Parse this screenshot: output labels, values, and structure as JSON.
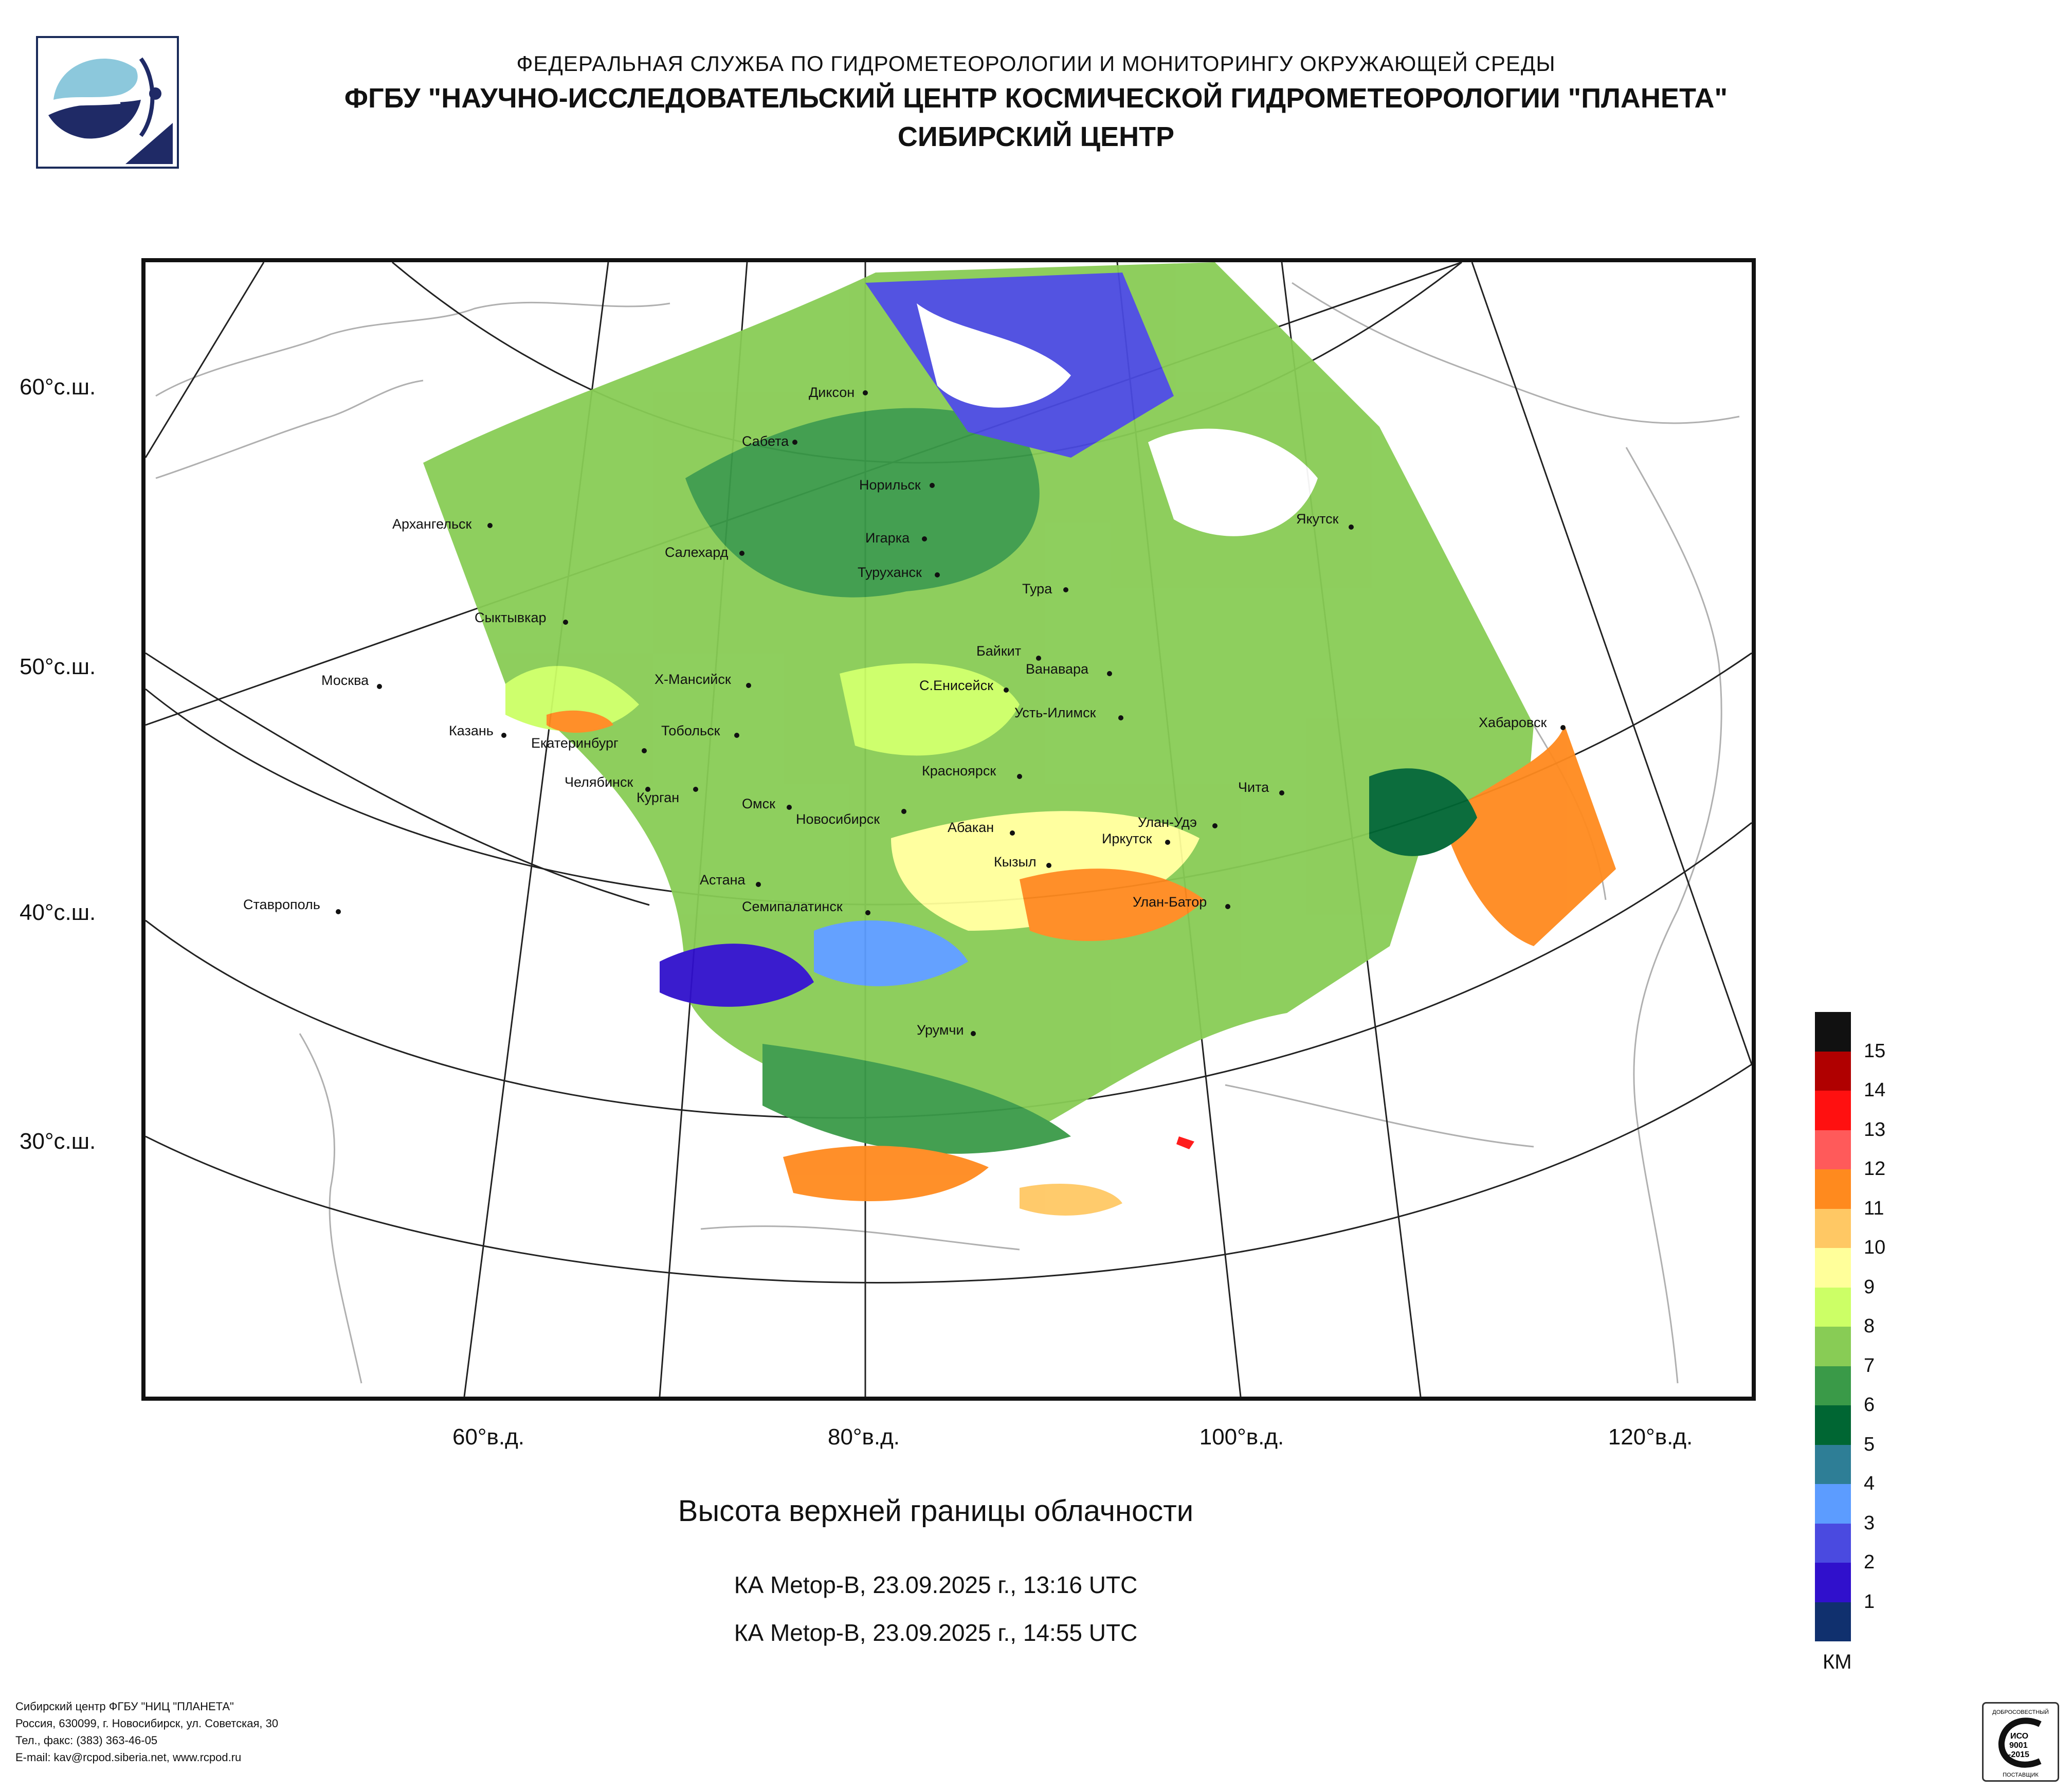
{
  "header": {
    "line1": "ФЕДЕРАЛЬНАЯ СЛУЖБА ПО ГИДРОМЕТЕОРОЛОГИИ И МОНИТОРИНГУ ОКРУЖАЮЩЕЙ СРЕДЫ",
    "line2": "ФГБУ \"НАУЧНО-ИССЛЕДОВАТЕЛЬСКИЙ ЦЕНТР КОСМИЧЕСКОЙ ГИДРОМЕТЕОРОЛОГИИ \"ПЛАНЕТА\"",
    "line3": "СИБИРСКИЙ ЦЕНТР"
  },
  "map": {
    "lat_labels": [
      "60°с.ш.",
      "50°с.ш.",
      "40°с.ш.",
      "30°с.ш."
    ],
    "lon_labels": [
      "60°в.д.",
      "80°в.д.",
      "100°в.д.",
      "120°в.д."
    ],
    "cities": [
      "Диксон",
      "Сабета",
      "Норильск",
      "Архангельск",
      "Салехард",
      "Игарка",
      "Туруханск",
      "Якутск",
      "Тура",
      "Сыктывкар",
      "Байкит",
      "Ванавара",
      "Москва",
      "Х-Мансийск",
      "С.Енисейск",
      "Усть-Илимск",
      "Хабаровск",
      "Казань",
      "Тобольск",
      "Екатеринбург",
      "Красноярск",
      "Чита",
      "Челябинск",
      "Курган",
      "Омск",
      "Новосибирск",
      "Абакан",
      "Улан-Удэ",
      "Иркутск",
      "Кызыл",
      "Астана",
      "Семипалатинск",
      "Улан-Батор",
      "Ставрополь",
      "Урумчи"
    ]
  },
  "product": {
    "title": "Высота верхней границы облачности",
    "pass1": "КА Metop-B, 23.09.2025 г., 13:16 UTC",
    "pass2": "КА Metop-B, 23.09.2025 г., 14:55 UTC"
  },
  "legend": {
    "unit": "КМ",
    "labels": [
      "15",
      "14",
      "13",
      "12",
      "11",
      "10",
      "9",
      "8",
      "7",
      "6",
      "5",
      "4",
      "3",
      "2",
      "1"
    ],
    "colors": [
      "#111111",
      "#b00000",
      "#ff1010",
      "#ff5a5a",
      "#ff8a1e",
      "#ffc864",
      "#ffff9a",
      "#ccff66",
      "#88cc55",
      "#3a9a48",
      "#006633",
      "#2e7e96",
      "#5c9cff",
      "#4a4ae0",
      "#3010cc",
      "#10306e"
    ]
  },
  "footer": {
    "lines": [
      "Сибирский центр ФГБУ \"НИЦ \"ПЛАНЕТА\"",
      "Россия, 630099, г. Новосибирск, ул. Советская, 30",
      "Тел., факс: (383) 363-46-05",
      "E-mail: kav@rcpod.siberia.net, www.rcpod.ru"
    ],
    "cert": [
      "ДОБРОСОВЕСТНЫЙ",
      "ИСО",
      "9001",
      "-2015",
      "ПОСТАВЩИК"
    ]
  },
  "colors": {
    "logo_blue": "#1f2a66",
    "logo_cyan": "#8cc8dc"
  }
}
